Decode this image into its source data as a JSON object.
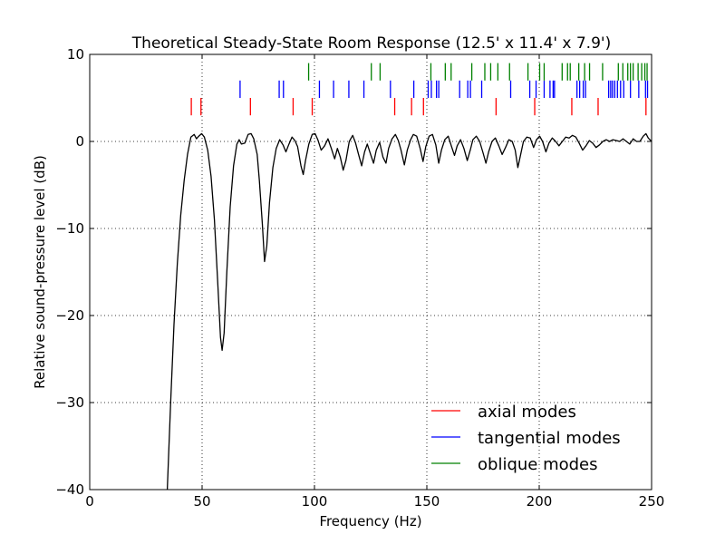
{
  "chart_data": {
    "type": "line",
    "title": "Theoretical Steady-State Room Response (12.5' x 11.4' x 7.9')",
    "xlabel": "Frequency (Hz)",
    "ylabel": "Relative sound-pressure level (dB)",
    "xlim": [
      0,
      250
    ],
    "ylim": [
      -40,
      10
    ],
    "xticks": [
      0,
      50,
      100,
      150,
      200,
      250
    ],
    "yticks": [
      10,
      0,
      -10,
      -20,
      -30,
      -40
    ],
    "ytick_labels": [
      "10",
      "0",
      "−10",
      "−20",
      "−30",
      "−40"
    ],
    "grid": true,
    "legend_position": "lower-right",
    "response": {
      "name": "response",
      "color": "#000000",
      "points": [
        [
          34.5,
          -40
        ],
        [
          36,
          -30
        ],
        [
          37.5,
          -21
        ],
        [
          39,
          -14
        ],
        [
          40.5,
          -8.5
        ],
        [
          42,
          -4.5
        ],
        [
          43.5,
          -1.5
        ],
        [
          45,
          0.5
        ],
        [
          46.5,
          0.8
        ],
        [
          47.5,
          0.3
        ],
        [
          48.5,
          0.6
        ],
        [
          49.8,
          0.9
        ],
        [
          51,
          0.5
        ],
        [
          52.5,
          -1.0
        ],
        [
          54,
          -4.0
        ],
        [
          55.5,
          -9.0
        ],
        [
          57,
          -16.5
        ],
        [
          58.2,
          -22.5
        ],
        [
          58.9,
          -24.0
        ],
        [
          59.8,
          -22.0
        ],
        [
          61,
          -15.0
        ],
        [
          62.5,
          -7.5
        ],
        [
          64,
          -2.8
        ],
        [
          65.5,
          -0.3
        ],
        [
          66.5,
          0.2
        ],
        [
          67.5,
          -0.3
        ],
        [
          69,
          -0.2
        ],
        [
          70.5,
          0.8
        ],
        [
          71.8,
          0.9
        ],
        [
          73,
          0.3
        ],
        [
          74.5,
          -1.5
        ],
        [
          75.5,
          -4.5
        ],
        [
          76.8,
          -9.5
        ],
        [
          77.8,
          -13.8
        ],
        [
          78.8,
          -12.0
        ],
        [
          80,
          -7.0
        ],
        [
          81.5,
          -3.0
        ],
        [
          83,
          -0.8
        ],
        [
          84.5,
          0.2
        ],
        [
          86,
          -0.4
        ],
        [
          87.3,
          -1.2
        ],
        [
          88.5,
          -0.4
        ],
        [
          90,
          0.5
        ],
        [
          91.3,
          0.1
        ],
        [
          92.5,
          -0.6
        ],
        [
          94,
          -2.8
        ],
        [
          95,
          -3.8
        ],
        [
          96,
          -2.2
        ],
        [
          97.5,
          -0.3
        ],
        [
          99,
          0.8
        ],
        [
          100.3,
          0.9
        ],
        [
          101.5,
          0.2
        ],
        [
          103,
          -1.0
        ],
        [
          104.5,
          -0.5
        ],
        [
          106,
          0.3
        ],
        [
          107.5,
          -0.8
        ],
        [
          109,
          -2.0
        ],
        [
          110.2,
          -0.8
        ],
        [
          111.5,
          -1.8
        ],
        [
          112.8,
          -3.3
        ],
        [
          114,
          -2.2
        ],
        [
          115.5,
          0.0
        ],
        [
          117,
          0.7
        ],
        [
          118.3,
          -0.2
        ],
        [
          119.5,
          -1.4
        ],
        [
          121,
          -2.8
        ],
        [
          122.3,
          -1.2
        ],
        [
          123.5,
          -0.3
        ],
        [
          125,
          -1.5
        ],
        [
          126.3,
          -2.5
        ],
        [
          127.5,
          -1.0
        ],
        [
          129,
          -0.1
        ],
        [
          130.5,
          -1.8
        ],
        [
          131.8,
          -2.5
        ],
        [
          133,
          -0.8
        ],
        [
          134.5,
          0.3
        ],
        [
          136,
          0.8
        ],
        [
          137.3,
          0.1
        ],
        [
          138.5,
          -1.0
        ],
        [
          140,
          -2.7
        ],
        [
          141.3,
          -1.0
        ],
        [
          142.8,
          0.2
        ],
        [
          144,
          0.8
        ],
        [
          145.5,
          0.6
        ],
        [
          147,
          -0.8
        ],
        [
          148.3,
          -2.3
        ],
        [
          149.5,
          -0.6
        ],
        [
          151,
          0.6
        ],
        [
          152.5,
          0.8
        ],
        [
          154,
          -0.4
        ],
        [
          155.3,
          -2.5
        ],
        [
          156.5,
          -1.0
        ],
        [
          158,
          0.2
        ],
        [
          159.5,
          0.6
        ],
        [
          161,
          -0.6
        ],
        [
          162.3,
          -1.6
        ],
        [
          163.5,
          -0.5
        ],
        [
          165,
          0.2
        ],
        [
          166.5,
          -0.8
        ],
        [
          168,
          -2.2
        ],
        [
          169.3,
          -1.0
        ],
        [
          170.5,
          0.2
        ],
        [
          172,
          0.6
        ],
        [
          173.5,
          0.0
        ],
        [
          175,
          -1.3
        ],
        [
          176.3,
          -2.5
        ],
        [
          177.5,
          -1.2
        ],
        [
          179,
          0.0
        ],
        [
          180.5,
          0.4
        ],
        [
          182,
          -0.5
        ],
        [
          183.5,
          -1.5
        ],
        [
          185,
          -0.7
        ],
        [
          186.5,
          0.2
        ],
        [
          188,
          0.0
        ],
        [
          189.3,
          -1.0
        ],
        [
          190.5,
          -3.0
        ],
        [
          191.5,
          -1.8
        ],
        [
          193,
          0.0
        ],
        [
          194.5,
          0.5
        ],
        [
          196,
          0.4
        ],
        [
          197.5,
          -0.7
        ],
        [
          198.8,
          0.2
        ],
        [
          200.2,
          0.6
        ],
        [
          201.5,
          0.0
        ],
        [
          203,
          -1.2
        ],
        [
          204.3,
          -0.2
        ],
        [
          205.8,
          0.4
        ],
        [
          207.3,
          0.0
        ],
        [
          208.8,
          -0.5
        ],
        [
          210.3,
          0.0
        ],
        [
          211.8,
          0.5
        ],
        [
          213.3,
          0.4
        ],
        [
          214.8,
          0.7
        ],
        [
          216.3,
          0.5
        ],
        [
          217.8,
          -0.2
        ],
        [
          219.3,
          -1.0
        ],
        [
          220.8,
          -0.5
        ],
        [
          222.3,
          0.1
        ],
        [
          223.8,
          -0.2
        ],
        [
          225.3,
          -0.7
        ],
        [
          226.8,
          -0.4
        ],
        [
          228.3,
          0.0
        ],
        [
          229.8,
          0.2
        ],
        [
          231.3,
          0.0
        ],
        [
          232.8,
          0.2
        ],
        [
          234.3,
          0.1
        ],
        [
          235.8,
          0.0
        ],
        [
          237.3,
          0.3
        ],
        [
          238.8,
          0.0
        ],
        [
          240.3,
          -0.3
        ],
        [
          241.8,
          0.3
        ],
        [
          243.3,
          0.0
        ],
        [
          244.8,
          0.0
        ],
        [
          246.3,
          0.6
        ],
        [
          247.5,
          0.9
        ],
        [
          248.5,
          0.4
        ],
        [
          250,
          0.0
        ]
      ]
    },
    "modes": [
      {
        "name": "axial modes",
        "color": "#ff0000",
        "frequencies": [
          45.2,
          49.5,
          71.5,
          90.5,
          99.0,
          135.7,
          143.2,
          148.5,
          180.8,
          198.0,
          214.5,
          226.2,
          247.5
        ],
        "marker_range": [
          3,
          5
        ]
      },
      {
        "name": "tangential modes",
        "color": "#0000ff",
        "frequencies": [
          66.9,
          84.3,
          86.2,
          102.2,
          108.5,
          115.3,
          122.0,
          133.8,
          144.2,
          150.6,
          152.0,
          154.3,
          155.3,
          164.6,
          168.2,
          169.4,
          174.4,
          187.3,
          195.8,
          198.6,
          202.2,
          204.8,
          206.2,
          206.8,
          216.8,
          218.0,
          219.6,
          220.6,
          230.9,
          231.8,
          232.6,
          233.6,
          234.8,
          236.2,
          237.6,
          240.6,
          244.3,
          247.3,
          248.2
        ],
        "marker_range": [
          5,
          7
        ]
      },
      {
        "name": "oblique modes",
        "color": "#008000",
        "frequencies": [
          97.4,
          125.3,
          129.2,
          151.8,
          158.2,
          160.8,
          170.0,
          175.8,
          178.4,
          181.6,
          186.8,
          195.0,
          200.2,
          202.2,
          210.2,
          212.6,
          213.8,
          217.6,
          220.2,
          222.4,
          228.2,
          235.2,
          237.2,
          239.4,
          240.6,
          241.8,
          244.0,
          245.6,
          247.0,
          248.0
        ],
        "marker_range": [
          7,
          9
        ]
      }
    ]
  }
}
